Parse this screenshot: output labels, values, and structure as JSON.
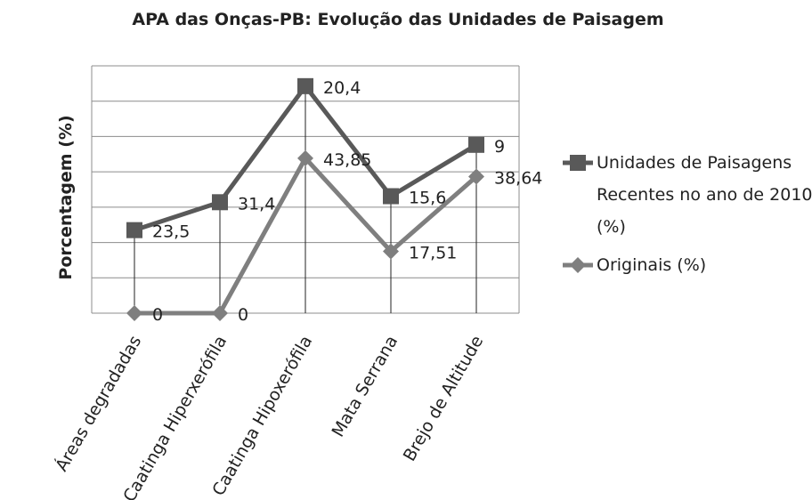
{
  "chart_data": {
    "type": "line",
    "stacked": true,
    "title": "APA das Onças-PB: Evolução das Unidades de Paisagem",
    "y_label": "Porcentagem  (%)",
    "categories": [
      "Áreas degradadas",
      "Caatinga Hiperxerófila",
      "Caatinga Hipoxerófila",
      "Mata Serrana",
      "Brejo de Altitude"
    ],
    "series": [
      {
        "name": "Originais (%)",
        "color": "#7f7f7f",
        "marker": "diamond",
        "values": [
          0,
          0,
          43.85,
          17.51,
          38.64
        ],
        "value_labels": [
          "0",
          "0",
          "43,85",
          "17,51",
          "38,64"
        ]
      },
      {
        "name": "Unidades de Paisagens Recentes no ano de 2010 (%)",
        "color": "#595959",
        "marker": "square",
        "values": [
          23.5,
          31.4,
          20.4,
          15.6,
          9
        ],
        "value_labels": [
          "23,5",
          "31,4",
          "20,4",
          "15,6",
          "9"
        ]
      }
    ],
    "ylim": [
      0,
      70
    ],
    "yticks": [
      0,
      10,
      20,
      30,
      40,
      50,
      60,
      70
    ],
    "grid": true
  }
}
